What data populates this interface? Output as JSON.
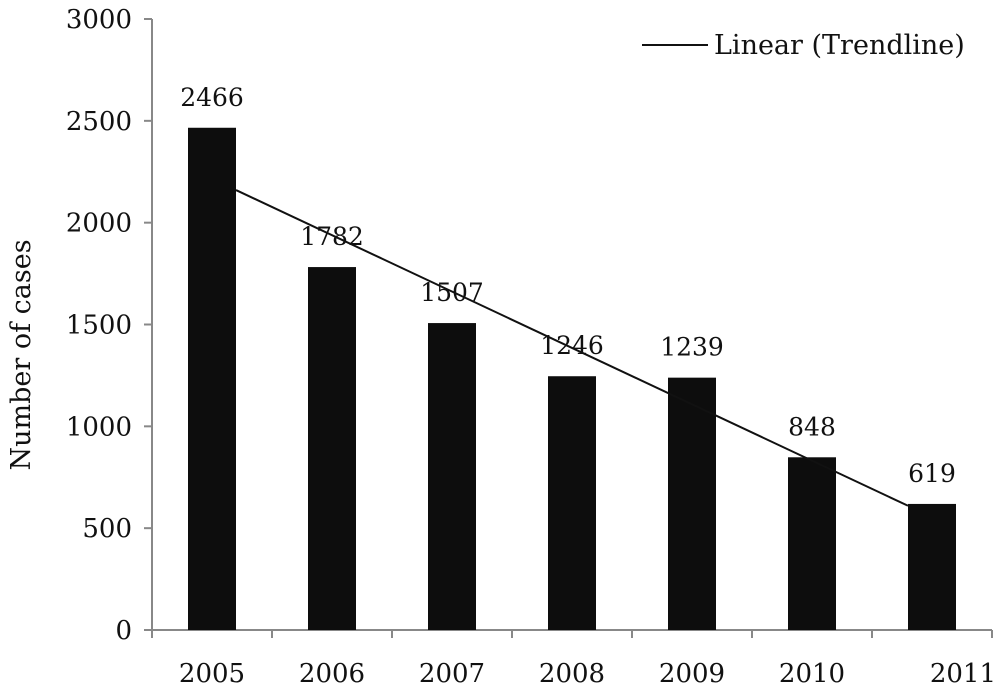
{
  "chart_data": {
    "type": "bar",
    "categories": [
      "2005",
      "2006",
      "2007",
      "2008",
      "2009",
      "2010",
      "2011"
    ],
    "values": [
      2466,
      1782,
      1507,
      1246,
      1239,
      848,
      619
    ],
    "data_labels": [
      "2466",
      "1782",
      "1507",
      "1246",
      "1239",
      "848",
      "619"
    ],
    "ylabel": "Number of cases",
    "xlabel": "",
    "ylim": [
      0,
      3000
    ],
    "yticks": [
      "0",
      "500",
      "1000",
      "1500",
      "2000",
      "2500",
      "3000"
    ],
    "grid": false,
    "trendline": {
      "name": "Linear (Trendline)",
      "type": "linear",
      "start": 2160,
      "end": 610
    },
    "legend": {
      "position": "top-right",
      "entries": [
        "Linear (Trendline)"
      ]
    },
    "colors": {
      "bar": "#0d0d0d",
      "axis": "#888888",
      "trendline": "#111111"
    }
  }
}
